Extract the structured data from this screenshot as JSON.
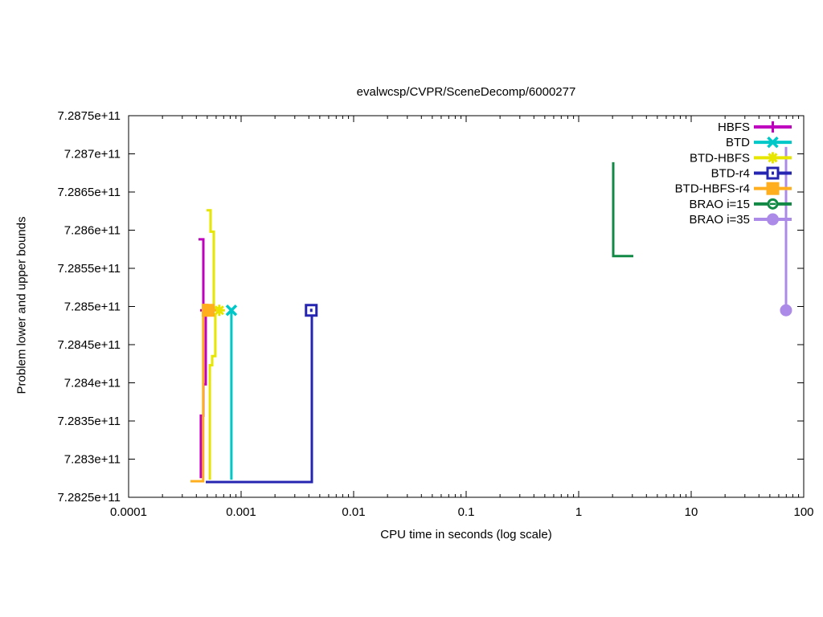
{
  "chart_data": {
    "type": "line",
    "title": "evalwcsp/CVPR/SceneDecomp/6000277",
    "xlabel": "CPU time in seconds (log scale)",
    "ylabel": "Problem lower and upper bounds",
    "x_scale": "log",
    "xlim": [
      0.0001,
      100
    ],
    "ylim": [
      728250000000.0,
      728750000000.0
    ],
    "grid": false,
    "legend_position": "top-right-inside",
    "x_ticks": [
      {
        "value": 0.0001,
        "label": "0.0001"
      },
      {
        "value": 0.001,
        "label": "0.001"
      },
      {
        "value": 0.01,
        "label": "0.01"
      },
      {
        "value": 0.1,
        "label": "0.1"
      },
      {
        "value": 1,
        "label": "1"
      },
      {
        "value": 10,
        "label": "10"
      },
      {
        "value": 100,
        "label": "100"
      }
    ],
    "y_ticks": [
      {
        "value": 728250000000.0,
        "label": "7.2825e+11"
      },
      {
        "value": 728300000000.0,
        "label": "7.283e+11"
      },
      {
        "value": 728350000000.0,
        "label": "7.2835e+11"
      },
      {
        "value": 728400000000.0,
        "label": "7.284e+11"
      },
      {
        "value": 728450000000.0,
        "label": "7.2845e+11"
      },
      {
        "value": 728500000000.0,
        "label": "7.285e+11"
      },
      {
        "value": 728550000000.0,
        "label": "7.2855e+11"
      },
      {
        "value": 728600000000.0,
        "label": "7.286e+11"
      },
      {
        "value": 728650000000.0,
        "label": "7.2865e+11"
      },
      {
        "value": 728700000000.0,
        "label": "7.287e+11"
      },
      {
        "value": 728750000000.0,
        "label": "7.2875e+11"
      }
    ],
    "series": [
      {
        "name": "HBFS",
        "color": "#BF00BF",
        "marker": "plus",
        "segments": [
          [
            [
              0.000418,
              728588000000.0
            ],
            [
              0.000462,
              728588000000.0
            ],
            [
              0.000462,
              728495000000.0
            ]
          ],
          [
            [
              0.000439,
              728275000000.0
            ],
            [
              0.000439,
              728357000000.0
            ],
            [
              0.000462,
              728357000000.0
            ],
            [
              0.000462,
              728398000000.0
            ],
            [
              0.000485,
              728398000000.0
            ],
            [
              0.000485,
              728493000000.0
            ]
          ]
        ],
        "markers_at": [
          [
            0.000485,
            728495000000.0
          ]
        ]
      },
      {
        "name": "BTD",
        "color": "#00C8C8",
        "marker": "cross",
        "segments": [
          [
            [
              0.00082,
              728273000000.0
            ],
            [
              0.00082,
              728493000000.0
            ]
          ]
        ],
        "markers_at": [
          [
            0.00082,
            728495000000.0
          ]
        ]
      },
      {
        "name": "BTD-HBFS",
        "color": "#E6E600",
        "marker": "asterisk",
        "segments": [
          [
            [
              0.000493,
              728626000000.0
            ],
            [
              0.000535,
              728626000000.0
            ],
            [
              0.000535,
              728598000000.0
            ],
            [
              0.000572,
              728598000000.0
            ],
            [
              0.000572,
              728498000000.0
            ],
            [
              0.000631,
              728498000000.0
            ]
          ],
          [
            [
              0.000527,
              728273000000.0
            ],
            [
              0.000527,
              728423000000.0
            ],
            [
              0.000553,
              728423000000.0
            ],
            [
              0.000553,
              728435000000.0
            ],
            [
              0.00059,
              728435000000.0
            ],
            [
              0.00059,
              728491000000.0
            ]
          ]
        ],
        "markers_at": [
          [
            0.00064,
            728495000000.0
          ]
        ]
      },
      {
        "name": "BTD-r4",
        "color": "#2525B2",
        "marker": "square-open",
        "segments": [
          [
            [
              0.000485,
              728270000000.0
            ],
            [
              0.00425,
              728270000000.0
            ],
            [
              0.00425,
              728493000000.0
            ]
          ]
        ],
        "markers_at": [
          [
            0.0042,
            728495000000.0
          ]
        ]
      },
      {
        "name": "BTD-HBFS-r4",
        "color": "#FFAE1E",
        "marker": "square-filled",
        "segments": [
          [
            [
              0.000355,
              728271000000.0
            ],
            [
              0.00046,
              728271000000.0
            ],
            [
              0.00046,
              728502000000.0
            ],
            [
              0.0005,
              728502000000.0
            ],
            [
              0.0005,
              728495000000.0
            ],
            [
              0.0006,
              728495000000.0
            ]
          ]
        ],
        "markers_at": [
          [
            0.00051,
            728495000000.0
          ]
        ]
      },
      {
        "name": "BRAO i=15",
        "color": "#128A46",
        "marker": "circle-open",
        "segments": [
          [
            [
              2.03,
              728689000000.0
            ],
            [
              2.03,
              728566000000.0
            ],
            [
              3.06,
              728566000000.0
            ]
          ]
        ],
        "markers_at": []
      },
      {
        "name": "BRAO i=35",
        "color": "#AC8BE8",
        "marker": "circle-filled",
        "segments": [
          [
            [
              69.6,
              728709000000.0
            ],
            [
              69.6,
              728495000000.0
            ]
          ]
        ],
        "markers_at": [
          [
            69.6,
            728495000000.0
          ]
        ]
      }
    ]
  }
}
